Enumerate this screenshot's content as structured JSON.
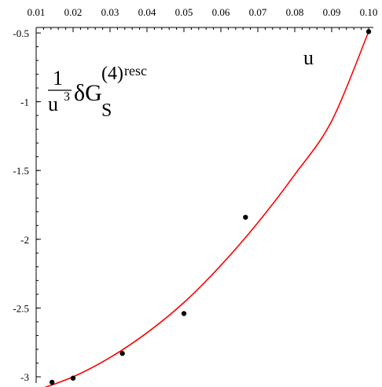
{
  "chart_data": {
    "type": "scatter",
    "xlabel": "u",
    "ylabel_parts": {
      "frac_num": "1",
      "frac_den_base": "u",
      "frac_den_exp": "3",
      "delta_g": "δG",
      "sub": "S",
      "sup": "(4)",
      "sup_rest": "resc"
    },
    "xlim": [
      0.01,
      0.1
    ],
    "ylim": [
      -3.05,
      -0.5
    ],
    "x_ticks": [
      "0.01",
      "0.02",
      "0.03",
      "0.04",
      "0.05",
      "0.06",
      "0.07",
      "0.08",
      "0.09",
      "0.10"
    ],
    "y_ticks": [
      "-0.5",
      "-1",
      "-1.5",
      "-2",
      "-2.5",
      "-3"
    ],
    "grid": false,
    "series": [
      {
        "kind": "points",
        "color": "#000000",
        "x": [
          0.01429,
          0.02,
          0.03333,
          0.05,
          0.06667,
          0.1
        ],
        "y": [
          -3.04,
          -3.01,
          -2.83,
          -2.54,
          -1.84,
          -0.49
        ]
      },
      {
        "kind": "curve",
        "color": "#ff0000",
        "x": [
          0.01,
          0.02,
          0.03,
          0.04,
          0.05,
          0.06,
          0.07,
          0.08,
          0.09,
          0.1
        ],
        "y": [
          -3.1,
          -3.0,
          -2.86,
          -2.68,
          -2.46,
          -2.19,
          -1.88,
          -1.53,
          -1.14,
          -0.49
        ]
      }
    ]
  }
}
